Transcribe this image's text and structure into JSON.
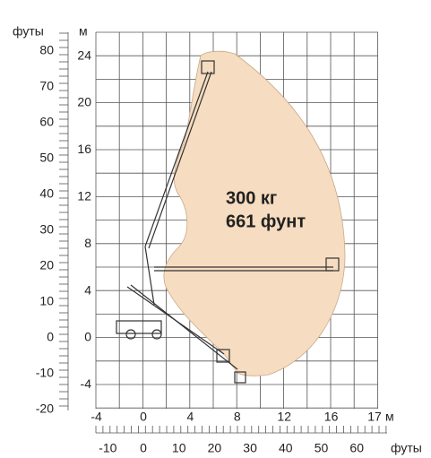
{
  "labels": {
    "feet_left": "футы",
    "m_top": "м",
    "m_right": "м",
    "feet_bottom": "футы"
  },
  "y_feet_ticks": [
    80,
    70,
    60,
    50,
    40,
    30,
    20,
    10,
    0,
    -10,
    -20
  ],
  "y_m_ticks": [
    24,
    20,
    16,
    12,
    8,
    4,
    0,
    -4
  ],
  "x_m_ticks": [
    -4,
    0,
    4,
    8,
    12,
    16,
    17
  ],
  "x_feet_ticks": [
    -10,
    0,
    10,
    20,
    30,
    40,
    50,
    60
  ],
  "capacity": [
    "300 кг",
    "661 фунт"
  ]
}
